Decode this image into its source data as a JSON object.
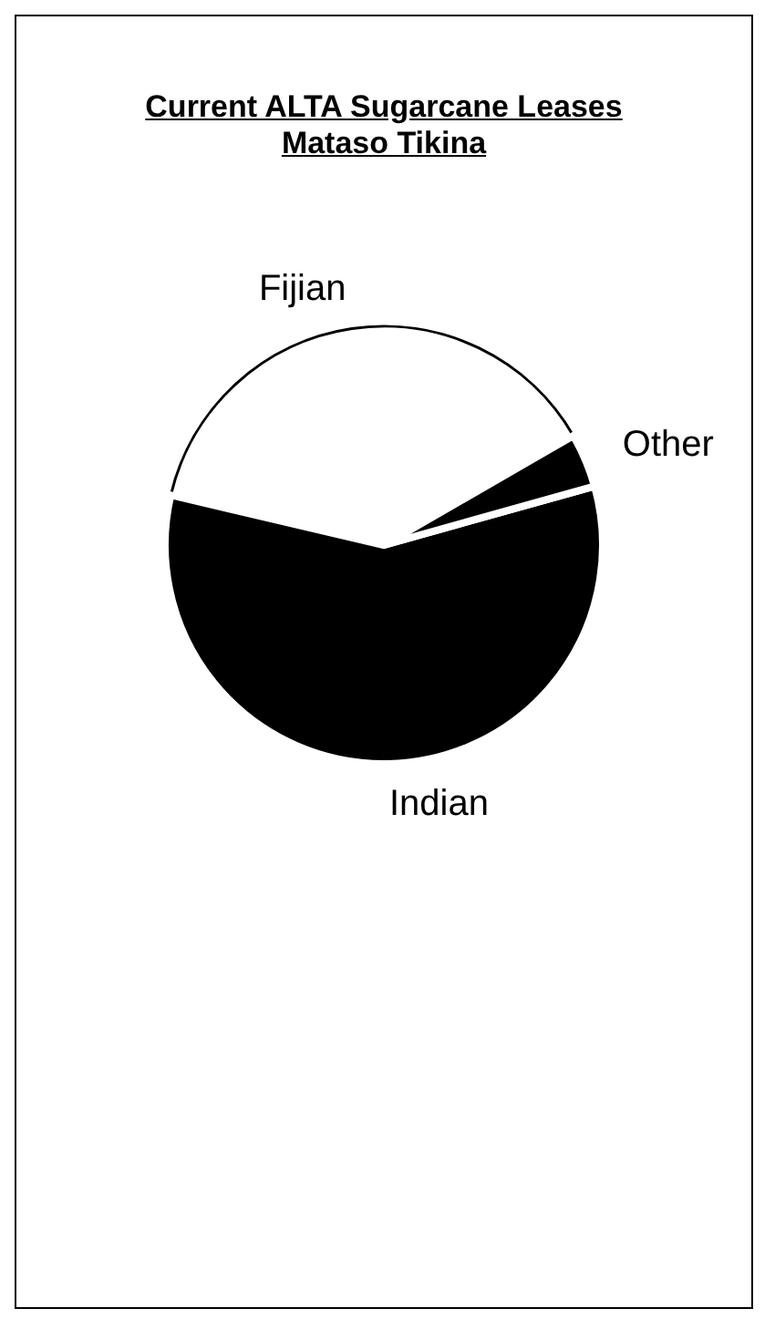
{
  "chart_data": {
    "type": "pie",
    "title": "Current ALTA Sugarcane Leases",
    "subtitle": "Mataso Tikina",
    "categories": [
      "Fijian",
      "Indian",
      "Other"
    ],
    "values": [
      38,
      58,
      4
    ],
    "colors": [
      "#ffffff",
      "#000000",
      "#000000"
    ],
    "legend": false
  }
}
